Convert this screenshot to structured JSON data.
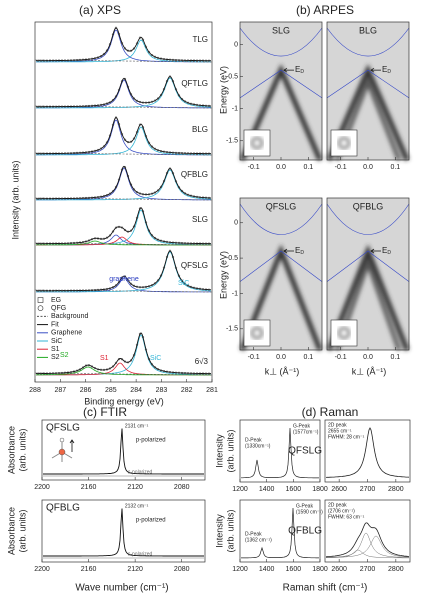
{
  "panels": {
    "xps": {
      "title": "(a) XPS",
      "xlabel": "Binding energy (eV)",
      "ylabel": "Intensity (arb. units)",
      "xlim": [
        288,
        281
      ],
      "xticks": [
        288,
        287,
        286,
        285,
        284,
        283,
        282,
        281
      ],
      "traces": [
        "TLG",
        "QFTLG",
        "BLG",
        "QFBLG",
        "SLG",
        "QFSLG",
        "6√3"
      ],
      "legend": [
        "EG",
        "QFG",
        "Background",
        "Fit",
        "Graphene",
        "SiC",
        "S1",
        "S2"
      ],
      "annotations": {
        "graphene": "graphene",
        "sic_qf": "SiC",
        "s2": "S2",
        "s1": "S1",
        "sic": "SiC"
      }
    },
    "arpes": {
      "title": "(b) ARPES",
      "ylabel": "Energy (eV)",
      "xlabel": "k⊥ (Å⁻¹)",
      "ylim": [
        0.35,
        -1.8
      ],
      "yticks": [
        0,
        -0.5,
        -1,
        -1.5
      ],
      "xlim": [
        -0.15,
        0.15
      ],
      "xticks": [
        -0.1,
        {
          "value": 0,
          "label": "0.0"
        },
        0.1
      ],
      "labels": [
        "SLG",
        "BLG",
        "QFSLG",
        "QFBLG"
      ],
      "dirac_label": "E",
      "dirac_sub": "D"
    },
    "ftir": {
      "title": "(c) FTIR",
      "xlabel": "Wave number (cm⁻¹)",
      "ylabel": [
        "Absorbance",
        "(arb. units)"
      ],
      "xlim": [
        2200,
        2060
      ],
      "xticks": [
        2200,
        2160,
        2120,
        2080
      ],
      "plots": [
        {
          "sample": "QFSLG",
          "peak": "2131 cm⁻¹",
          "p": "p-polarized",
          "s": "s-polarized"
        },
        {
          "sample": "QFBLG",
          "peak": "2132 cm⁻¹",
          "p": "p-polarized",
          "s": "s-polarized"
        }
      ]
    },
    "raman": {
      "title": "(d) Raman",
      "xlabel": "Raman shift (cm⁻¹)",
      "ylabel": [
        "Intensity",
        "(arb. units)"
      ],
      "xlim_left": [
        1200,
        1800
      ],
      "xticks_left": [
        1200,
        1400,
        1600,
        1800
      ],
      "xlim_right": [
        2550,
        2850
      ],
      "xticks_right": [
        2600,
        2700,
        2800
      ],
      "plots": [
        {
          "sample": "QFSLG",
          "d": [
            "D-Peak",
            "(1330cm⁻¹)"
          ],
          "g": [
            "G-Peak",
            "(1577cm⁻¹)"
          ],
          "p2d": [
            "2D peak",
            "2655 cm⁻¹",
            "FWHM: 28 cm⁻¹"
          ]
        },
        {
          "sample": "QFBLG",
          "d": [
            "D-Peak",
            "(1362 cm⁻¹)"
          ],
          "g": [
            "G-Peak",
            "(1590 cm⁻¹)"
          ],
          "p2d": [
            "2D peak",
            "(2706 cm⁻¹)",
            "FWHM: 63 cm⁻¹"
          ]
        }
      ]
    }
  }
}
